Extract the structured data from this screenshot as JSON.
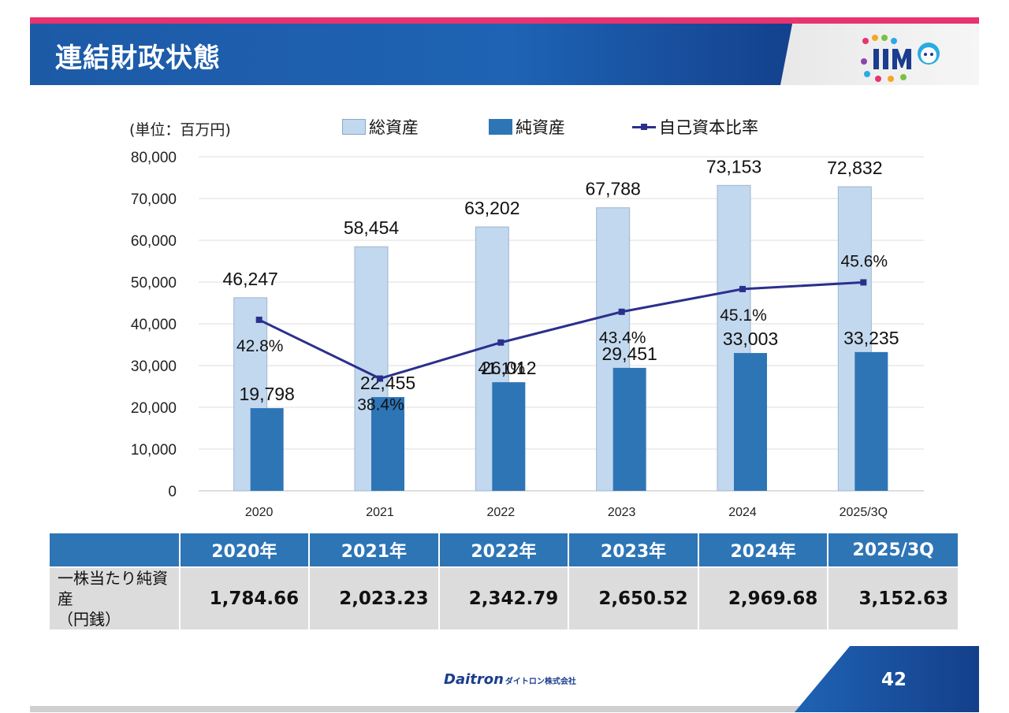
{
  "header": {
    "title": "連結財政状態"
  },
  "chart_data": {
    "type": "bar",
    "unit_label": "(単位：百万円)",
    "categories": [
      "2020",
      "2021",
      "2022",
      "2023",
      "2024",
      "2025/3Q"
    ],
    "series": [
      {
        "name": "総資産",
        "values": [
          46247,
          58454,
          63202,
          67788,
          73153,
          72832
        ],
        "labels": [
          "46,247",
          "58,454",
          "63,202",
          "67,788",
          "73,153",
          "72,832"
        ],
        "color": "#c2d8ee"
      },
      {
        "name": "純資産",
        "values": [
          19798,
          22455,
          26012,
          29451,
          33003,
          33235
        ],
        "labels": [
          "19,798",
          "22,455",
          "26,012",
          "29,451",
          "33,003",
          "33,235"
        ],
        "color": "#2e75b6"
      },
      {
        "name": "自己資本比率",
        "type": "line",
        "values": [
          42.8,
          38.4,
          41.1,
          43.4,
          45.1,
          45.6
        ],
        "labels": [
          "42.8%",
          "38.4%",
          "41.1%",
          "43.4%",
          "45.1%",
          "45.6%"
        ],
        "color": "#2b2f8c"
      }
    ],
    "ylim": [
      0,
      80000
    ],
    "yticks": [
      "0",
      "10,000",
      "20,000",
      "30,000",
      "40,000",
      "50,000",
      "60,000",
      "70,000",
      "80,000"
    ],
    "y2lim": [
      30,
      55
    ],
    "grid": true,
    "legend_position": "top"
  },
  "table": {
    "columns": [
      "2020年",
      "2021年",
      "2022年",
      "2023年",
      "2024年",
      "2025/3Q"
    ],
    "row_label_line1": "一株当たり純資産",
    "row_label_line2": "（円銭）",
    "values": [
      "1,784.66",
      "2,023.23",
      "2,342.79",
      "2,650.52",
      "2,969.68",
      "3,152.63"
    ]
  },
  "footer": {
    "brand": "Daitron",
    "brand_jp": "ダイトロン株式会社",
    "page_number": "42"
  },
  "colors": {
    "accent_pink": "#e8336f",
    "header_blue": "#1d5aa6",
    "total_assets": "#c2d8ee",
    "net_assets": "#2e75b6",
    "ratio_line": "#2b2f8c"
  }
}
